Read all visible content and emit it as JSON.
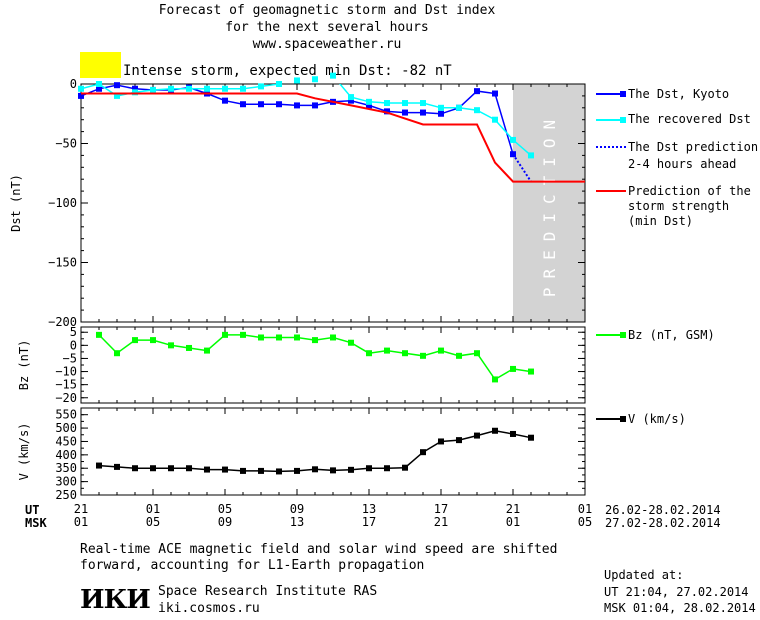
{
  "header": {
    "title_line1": "Forecast of geomagnetic storm and Dst index",
    "title_line2": "for the next several hours",
    "title_line3": "www.spaceweather.ru",
    "alert_color": "#ffff00",
    "alert_text": "Intense storm, expected min Dst: -82 nT"
  },
  "prediction_label": "PREDICTION",
  "legend": {
    "dst_kyoto": "The Dst, Kyoto",
    "recovered": "The recovered Dst",
    "prediction_line1": "The Dst prediction",
    "prediction_line2": "2-4 hours ahead",
    "strength_line1": "Prediction of the",
    "strength_line2": "storm strength",
    "strength_line3": "(min Dst)",
    "bz": "Bz (nT, GSM)",
    "v": "V (km/s)"
  },
  "axes": {
    "ut_label": "UT",
    "msk_label": "MSK",
    "ut_ticks": [
      "21",
      "01",
      "05",
      "09",
      "13",
      "17",
      "21",
      "01"
    ],
    "msk_ticks": [
      "01",
      "05",
      "09",
      "13",
      "17",
      "21",
      "01",
      "05"
    ],
    "ut_range": "26.02-28.02.2014",
    "msk_range": "27.02-28.02.2014"
  },
  "footer": {
    "note_line1": "Real-time ACE magnetic field and solar wind speed are shifted",
    "note_line2": "forward, accounting for L1-Earth propagation",
    "logo": "ИКИ",
    "institute": "Space Research Institute RAS",
    "site": "iki.cosmos.ru",
    "updated_label": "Updated at:",
    "updated_ut": "UT  21:04, 27.02.2014",
    "updated_msk": "MSK 01:04, 28.02.2014"
  },
  "chart_data": [
    {
      "type": "line",
      "ylabel": "Dst (nT)",
      "ylim": [
        -200,
        0
      ],
      "yticks": [
        0,
        -50,
        -100,
        -150,
        -200
      ],
      "x_unit": "hours after 21 UT",
      "xlim": [
        0,
        28
      ],
      "prediction_region": [
        24,
        28
      ],
      "series": [
        {
          "name": "The Dst, Kyoto",
          "color": "#0000ff",
          "x": [
            0,
            1,
            2,
            3,
            4,
            5,
            6,
            7,
            8,
            9,
            10,
            11,
            12,
            13,
            14,
            15,
            16,
            17,
            18,
            19,
            20,
            21,
            22,
            23,
            24
          ],
          "y": [
            -10,
            -4,
            -1,
            -4,
            -5,
            -5,
            -3,
            -8,
            -14,
            -17,
            -17,
            -17,
            -18,
            -18,
            -15,
            -14,
            -18,
            -23,
            -24,
            -24,
            -25,
            -20,
            -6,
            -8,
            -59
          ]
        },
        {
          "name": "The recovered Dst",
          "color": "#00ffff",
          "x": [
            0,
            1,
            2,
            3,
            4,
            5,
            6,
            7,
            8,
            9,
            10,
            11,
            12,
            13,
            14,
            15,
            16,
            17,
            18,
            19,
            20,
            21,
            22,
            23,
            24,
            25
          ],
          "y": [
            -4,
            0,
            -10,
            -7,
            -5,
            -4,
            -4,
            -4,
            -4,
            -4,
            -2,
            0,
            3,
            4,
            7,
            -11,
            -15,
            -16,
            -16,
            -16,
            -20,
            -20,
            -22,
            -30,
            -47,
            -60
          ]
        },
        {
          "name": "The Dst prediction 2-4 hours ahead",
          "color": "#0000ff",
          "x": [
            24,
            25
          ],
          "y": [
            -59,
            -82
          ]
        },
        {
          "name": "Prediction of the storm strength (min Dst)",
          "color": "#ff0000",
          "x": [
            0,
            8,
            8,
            12,
            12,
            13,
            13,
            15,
            15,
            17,
            17,
            19,
            19,
            21,
            21,
            22,
            22,
            23,
            23,
            24,
            24,
            28
          ],
          "y": [
            -8,
            -8,
            -8,
            -8,
            -8,
            -12,
            -12,
            -18,
            -18,
            -24,
            -24,
            -34,
            -34,
            -34,
            -34,
            -34,
            -34,
            -66,
            -66,
            -82,
            -82,
            -82
          ]
        }
      ]
    },
    {
      "type": "line",
      "ylabel": "Bz (nT)",
      "ylim": [
        -22,
        7
      ],
      "yticks": [
        5,
        0,
        -5,
        -10,
        -15,
        -20
      ],
      "series": [
        {
          "name": "Bz (nT, GSM)",
          "color": "#00ff00",
          "x": [
            1,
            2,
            3,
            4,
            5,
            6,
            7,
            8,
            9,
            10,
            11,
            12,
            13,
            14,
            15,
            16,
            17,
            18,
            19,
            20,
            21,
            22,
            23,
            24,
            25
          ],
          "y": [
            4,
            -3,
            2,
            2,
            0,
            -1,
            -2,
            4,
            4,
            3,
            3,
            3,
            2,
            3,
            1,
            -3,
            -2,
            -3,
            -4,
            -2,
            -4,
            -3,
            -13,
            -9,
            -10
          ]
        }
      ]
    },
    {
      "type": "line",
      "ylabel": "V (km/s)",
      "ylim": [
        250,
        575
      ],
      "yticks": [
        250,
        300,
        350,
        400,
        450,
        500,
        550
      ],
      "series": [
        {
          "name": "V (km/s)",
          "color": "#000000",
          "x": [
            1,
            2,
            3,
            4,
            5,
            6,
            7,
            8,
            9,
            10,
            11,
            12,
            13,
            14,
            15,
            16,
            17,
            18,
            19,
            20,
            21,
            22,
            23,
            24,
            25
          ],
          "y": [
            360,
            355,
            350,
            350,
            350,
            350,
            345,
            345,
            340,
            340,
            338,
            340,
            346,
            342,
            344,
            350,
            350,
            352,
            410,
            450,
            455,
            472,
            490,
            478,
            464
          ]
        }
      ]
    }
  ]
}
